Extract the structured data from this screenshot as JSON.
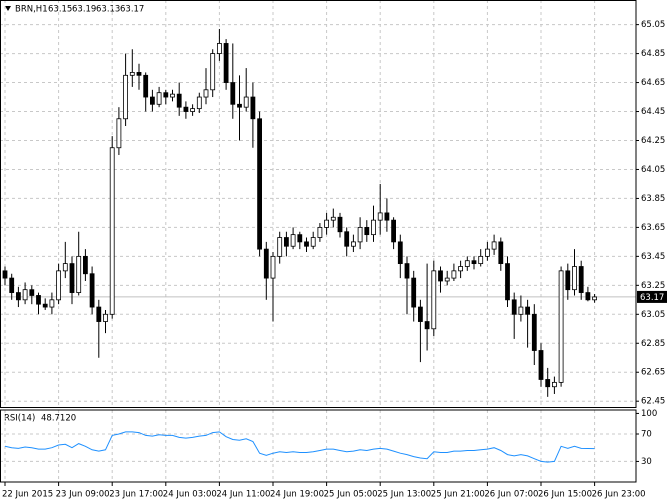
{
  "chart_data": {
    "type": "candlestick",
    "title": "BRN,H1",
    "categories": [
      "22 Jun 2015",
      null,
      null,
      null,
      null,
      null,
      null,
      null,
      "23 Jun 09:00",
      null,
      null,
      null,
      null,
      null,
      null,
      null,
      "23 Jun 17:00",
      null,
      null,
      null,
      null,
      null,
      null,
      null,
      "24 Jun 03:00",
      null,
      null,
      null,
      null,
      null,
      null,
      null,
      "24 Jun 11:00",
      null,
      null,
      null,
      null,
      null,
      null,
      null,
      "24 Jun 19:00",
      null,
      null,
      null,
      null,
      null,
      null,
      null,
      "25 Jun 05:00",
      null,
      null,
      null,
      null,
      null,
      null,
      null,
      "25 Jun 13:00",
      null,
      null,
      null,
      null,
      null,
      null,
      null,
      "25 Jun 21:00",
      null,
      null,
      null,
      null,
      null,
      null,
      null,
      "26 Jun 07:00",
      null,
      null,
      null,
      null,
      null,
      null,
      null,
      "26 Jun 15:00",
      null,
      null,
      null,
      null,
      null,
      null,
      null,
      "26 Jun 23:00"
    ],
    "open": [
      63.35,
      63.3,
      63.2,
      63.15,
      63.22,
      63.18,
      63.12,
      63.1,
      63.15,
      63.35,
      63.4,
      63.2,
      63.45,
      63.33,
      63.1,
      63.0,
      63.05,
      64.2,
      64.4,
      64.7,
      64.72,
      64.7,
      64.55,
      64.5,
      64.58,
      64.55,
      64.57,
      64.48,
      64.45,
      64.47,
      64.55,
      64.6,
      64.85,
      64.92,
      64.65,
      64.5,
      64.48,
      64.55,
      64.4,
      63.5,
      63.3,
      63.45,
      63.58,
      63.52,
      63.6,
      63.55,
      63.52,
      63.58,
      63.65,
      63.7,
      63.72,
      63.62,
      63.52,
      63.55,
      63.65,
      63.6,
      63.7,
      63.75,
      63.7,
      63.55,
      63.4,
      63.3,
      63.1,
      63.0,
      62.95,
      63.35,
      63.28,
      63.3,
      63.35,
      63.38,
      63.42,
      63.4,
      63.45,
      63.5,
      63.55,
      63.4,
      63.15,
      63.05,
      63.1,
      63.05,
      62.8,
      62.6,
      62.55,
      62.58,
      63.35,
      63.22,
      63.38,
      63.2,
      63.15
    ],
    "high": [
      63.38,
      63.33,
      63.24,
      63.27,
      63.25,
      63.2,
      63.16,
      63.2,
      63.4,
      63.55,
      63.45,
      63.62,
      63.5,
      63.38,
      63.15,
      63.08,
      64.28,
      64.48,
      64.85,
      64.88,
      64.78,
      64.72,
      64.6,
      64.62,
      64.6,
      64.6,
      64.65,
      64.52,
      64.5,
      64.58,
      64.75,
      64.88,
      65.02,
      64.95,
      64.92,
      64.7,
      64.75,
      64.65,
      64.45,
      63.55,
      63.48,
      63.62,
      63.62,
      63.65,
      63.62,
      63.58,
      63.62,
      63.68,
      63.75,
      63.78,
      63.75,
      63.65,
      63.6,
      63.72,
      63.7,
      63.8,
      63.95,
      63.85,
      63.72,
      63.6,
      63.45,
      63.35,
      63.15,
      63.4,
      63.42,
      63.38,
      63.35,
      63.4,
      63.42,
      63.45,
      63.45,
      63.5,
      63.55,
      63.6,
      63.58,
      63.45,
      63.2,
      63.18,
      63.15,
      63.12,
      62.85,
      62.68,
      62.62,
      63.38,
      63.4,
      63.5,
      63.42,
      63.24,
      63.19
    ],
    "low": [
      63.25,
      63.15,
      63.1,
      63.12,
      63.12,
      63.05,
      63.08,
      63.05,
      63.12,
      63.3,
      63.12,
      63.18,
      63.28,
      63.05,
      62.75,
      62.92,
      63.02,
      64.15,
      64.35,
      64.62,
      64.6,
      64.45,
      64.45,
      64.48,
      64.5,
      64.52,
      64.42,
      64.4,
      64.42,
      64.44,
      64.5,
      64.55,
      64.8,
      64.6,
      64.4,
      64.25,
      64.45,
      64.2,
      63.45,
      63.15,
      63.0,
      63.4,
      63.45,
      63.5,
      63.5,
      63.48,
      63.5,
      63.55,
      63.6,
      63.65,
      63.58,
      63.45,
      63.48,
      63.5,
      63.55,
      63.55,
      63.6,
      63.62,
      63.5,
      63.3,
      63.05,
      63.0,
      62.72,
      62.8,
      62.9,
      63.2,
      63.25,
      63.28,
      63.3,
      63.35,
      63.36,
      63.38,
      63.42,
      63.46,
      63.35,
      63.1,
      62.88,
      63.0,
      62.82,
      62.7,
      62.55,
      62.48,
      62.5,
      62.55,
      63.15,
      63.18,
      63.15,
      63.14,
      63.13
    ],
    "close": [
      63.3,
      63.2,
      63.15,
      63.22,
      63.18,
      63.12,
      63.1,
      63.15,
      63.35,
      63.4,
      63.2,
      63.45,
      63.33,
      63.1,
      63.0,
      63.05,
      64.2,
      64.4,
      64.7,
      64.72,
      64.7,
      64.55,
      64.5,
      64.58,
      64.55,
      64.57,
      64.48,
      64.45,
      64.47,
      64.55,
      64.6,
      64.85,
      64.92,
      64.65,
      64.5,
      64.48,
      64.55,
      64.4,
      63.5,
      63.3,
      63.45,
      63.58,
      63.52,
      63.6,
      63.55,
      63.52,
      63.58,
      63.65,
      63.7,
      63.72,
      63.62,
      63.52,
      63.55,
      63.65,
      63.6,
      63.7,
      63.75,
      63.7,
      63.55,
      63.4,
      63.3,
      63.1,
      63.0,
      62.95,
      63.35,
      63.28,
      63.3,
      63.35,
      63.38,
      63.42,
      63.4,
      63.45,
      63.5,
      63.55,
      63.4,
      63.15,
      63.05,
      63.1,
      63.05,
      62.8,
      62.6,
      62.55,
      62.58,
      63.35,
      63.22,
      63.38,
      63.2,
      63.15,
      63.17
    ],
    "up_color": "#ffffff",
    "down_color": "#000000",
    "ylim": [
      62.41,
      65.22
    ],
    "yticks": [
      65.05,
      64.85,
      64.65,
      64.45,
      64.25,
      64.05,
      63.85,
      63.65,
      63.45,
      63.25,
      63.05,
      62.85,
      62.65,
      62.45
    ],
    "grid": true,
    "indicator": {
      "name": "RSI(14)",
      "last_label": "48.7120",
      "color": "#1e90ff",
      "values": [
        52,
        50,
        49,
        51,
        50,
        48,
        48,
        50,
        54,
        55,
        50,
        56,
        52,
        47,
        45,
        47,
        68,
        70,
        73,
        73,
        72,
        68,
        67,
        69,
        68,
        68,
        65,
        64,
        65,
        67,
        68,
        72,
        73,
        66,
        62,
        61,
        63,
        59,
        42,
        39,
        42,
        44,
        43,
        44,
        43,
        43,
        44,
        46,
        48,
        48,
        46,
        44,
        45,
        47,
        46,
        48,
        49,
        48,
        45,
        42,
        40,
        37,
        35,
        34,
        44,
        43,
        43,
        45,
        45,
        46,
        46,
        47,
        48,
        50,
        46,
        40,
        38,
        40,
        38,
        34,
        30,
        29,
        30,
        52,
        49,
        52,
        49,
        48.9,
        48.712
      ],
      "ylim": [
        0,
        105
      ],
      "yticks": [
        100,
        70,
        30
      ]
    }
  }
}
